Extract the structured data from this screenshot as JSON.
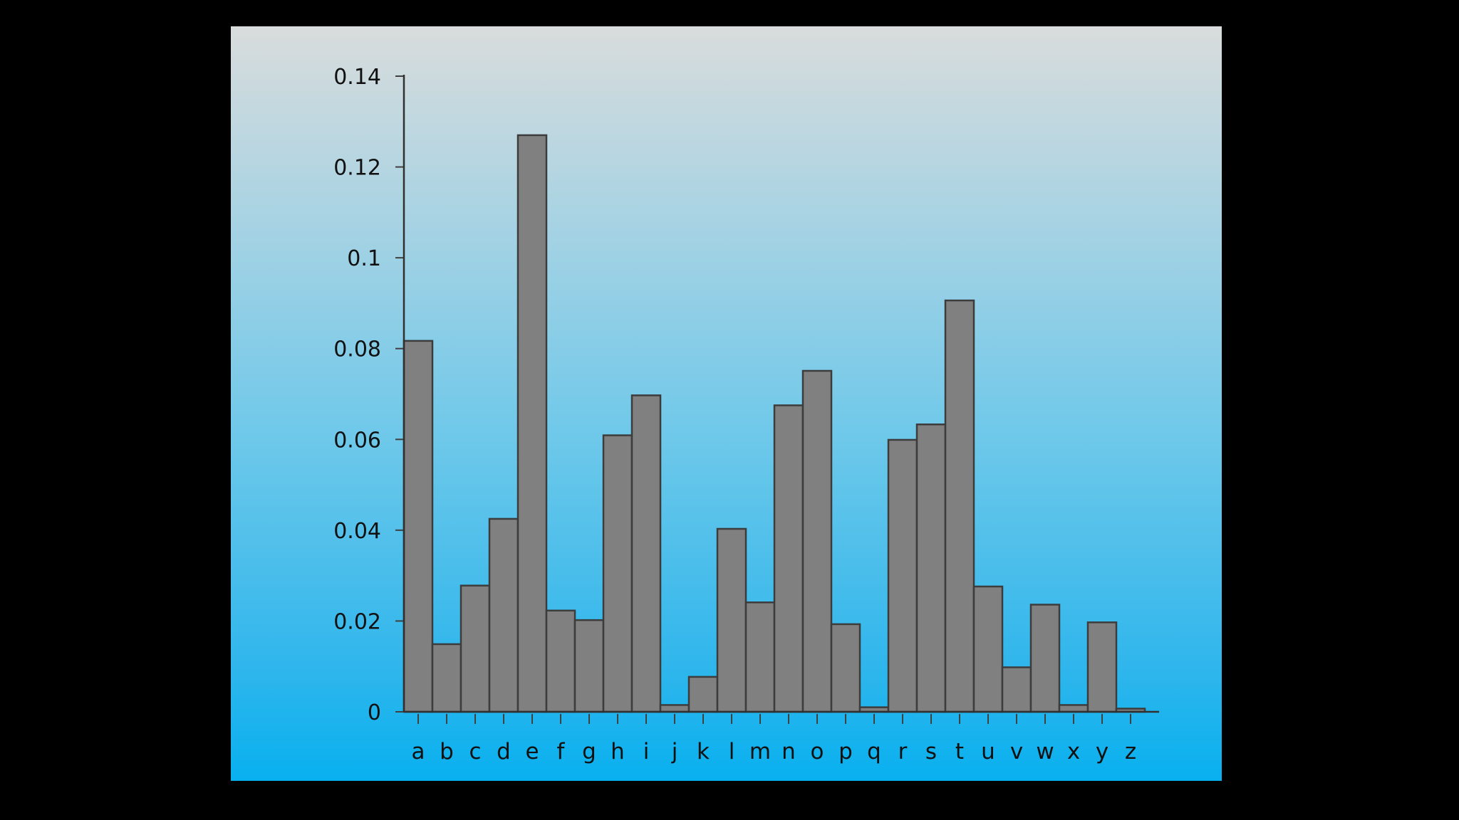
{
  "chart_data": {
    "type": "bar",
    "categories": [
      "a",
      "b",
      "c",
      "d",
      "e",
      "f",
      "g",
      "h",
      "i",
      "j",
      "k",
      "l",
      "m",
      "n",
      "o",
      "p",
      "q",
      "r",
      "s",
      "t",
      "u",
      "v",
      "w",
      "x",
      "y",
      "z"
    ],
    "values": [
      0.0817,
      0.0149,
      0.0278,
      0.0425,
      0.127,
      0.0223,
      0.0202,
      0.0609,
      0.0697,
      0.0015,
      0.0077,
      0.0403,
      0.0241,
      0.0675,
      0.0751,
      0.0193,
      0.001,
      0.0599,
      0.0633,
      0.0906,
      0.0276,
      0.0098,
      0.0236,
      0.0015,
      0.0197,
      0.0007
    ],
    "yticks": [
      "0",
      "0.02",
      "0.04",
      "0.06",
      "0.08",
      "0.1",
      "0.12",
      "0.14"
    ],
    "ylim": [
      0,
      0.14
    ],
    "bar_fill": "#808080",
    "bar_stroke": "#3c3c3c",
    "background_top": "#d9dcdc",
    "background_bottom": "#08b0ef",
    "grid": false,
    "title": "",
    "xlabel": "",
    "ylabel": ""
  }
}
